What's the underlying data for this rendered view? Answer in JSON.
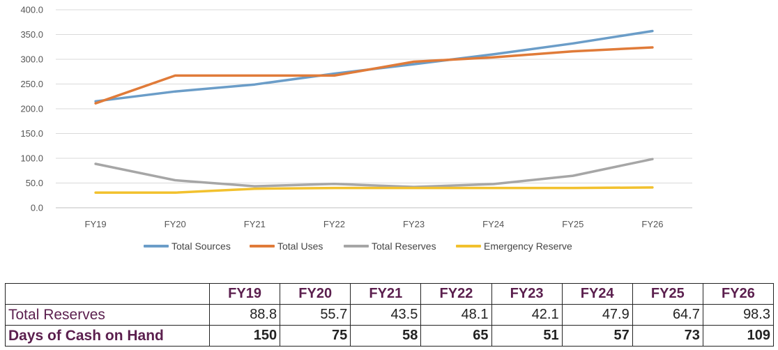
{
  "chart_data": {
    "type": "line",
    "x": [
      "FY19",
      "FY20",
      "FY21",
      "FY22",
      "FY23",
      "FY24",
      "FY25",
      "FY26"
    ],
    "ylim": [
      0,
      400
    ],
    "yticks": [
      "0.0",
      "50.0",
      "100.0",
      "150.0",
      "200.0",
      "250.0",
      "300.0",
      "350.0",
      "400.0"
    ],
    "grid": true,
    "legend_position": "bottom",
    "series": [
      {
        "name": "Total Sources",
        "color": "#6b9dc8",
        "values": [
          215,
          235,
          249,
          271,
          290,
          310,
          332,
          357
        ]
      },
      {
        "name": "Total Uses",
        "color": "#e07b39",
        "values": [
          211,
          267,
          267,
          267,
          295,
          304,
          316,
          324
        ]
      },
      {
        "name": "Total Reserves",
        "color": "#a6a6a6",
        "values": [
          88.8,
          55.7,
          43.5,
          48.1,
          42.1,
          47.9,
          64.7,
          98.3
        ]
      },
      {
        "name": "Emergency Reserve",
        "color": "#f2c12e",
        "values": [
          30.5,
          30.5,
          38.5,
          40,
          40,
          40,
          40,
          41
        ]
      }
    ]
  },
  "table": {
    "header": [
      "",
      "FY19",
      "FY20",
      "FY21",
      "FY22",
      "FY23",
      "FY24",
      "FY25",
      "FY26"
    ],
    "rows": [
      {
        "label": "Total Reserves",
        "values": [
          "88.8",
          "55.7",
          "43.5",
          "48.1",
          "42.1",
          "47.9",
          "64.7",
          "98.3"
        ]
      },
      {
        "label": "Days of Cash on Hand",
        "values": [
          "150",
          "75",
          "58",
          "65",
          "51",
          "57",
          "73",
          "109"
        ]
      }
    ]
  }
}
